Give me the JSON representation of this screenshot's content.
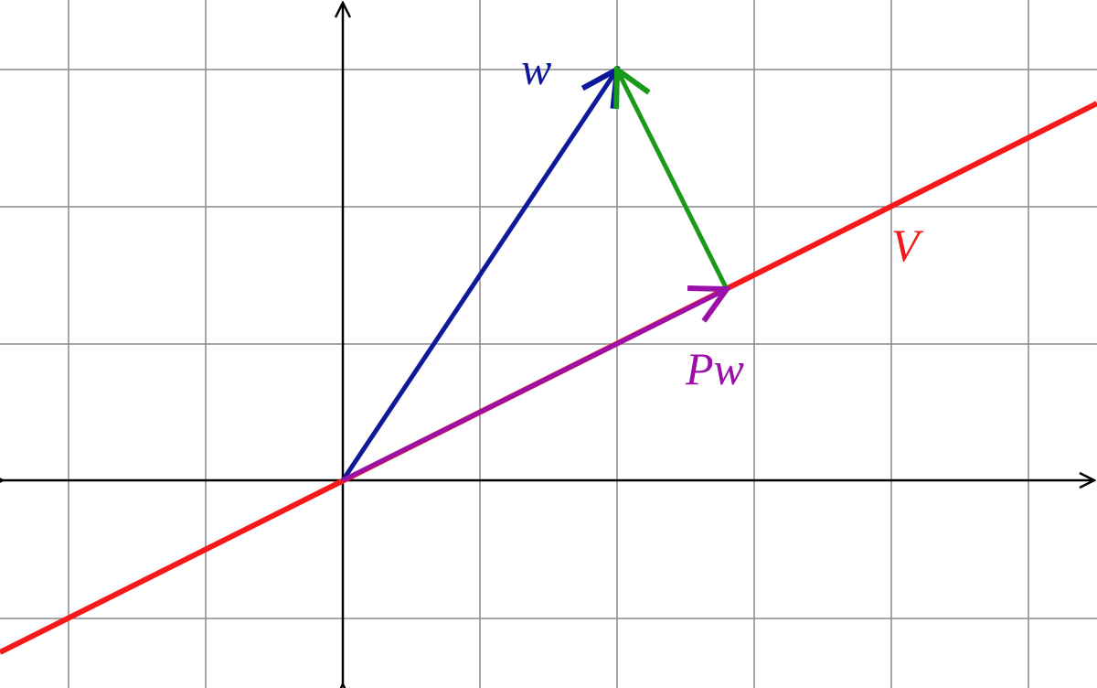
{
  "labels": {
    "w": "w",
    "v": "V",
    "pw": "Pw"
  }
}
